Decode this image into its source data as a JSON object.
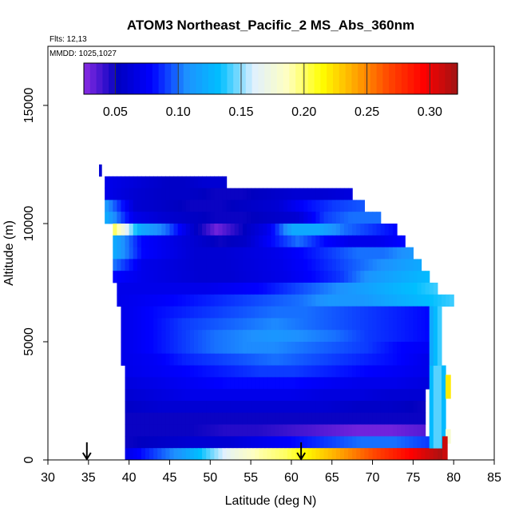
{
  "chart_data": {
    "type": "heatmap",
    "title": "ATOM3 Northeast_Pacific_2 MS_Abs_360nm",
    "annotations": [
      "Flts: 12,13",
      "MMDD: 1025,1027"
    ],
    "xlabel": "Latitude (deg N)",
    "ylabel": "Altitude (m)",
    "xlim": [
      30,
      85
    ],
    "ylim": [
      0,
      17500
    ],
    "x_ticks": [
      "30",
      "35",
      "40",
      "45",
      "50",
      "55",
      "60",
      "65",
      "70",
      "75",
      "80",
      "85"
    ],
    "y_ticks": [
      "0",
      "5000",
      "10000",
      "15000"
    ],
    "colorbar": {
      "range": [
        0.025,
        0.322
      ],
      "ticks": [
        "0.05",
        "0.10",
        "0.15",
        "0.20",
        "0.25",
        "0.30"
      ],
      "colors": [
        "#8a2be2",
        "#0000c0",
        "#0000ff",
        "#1e90ff",
        "#00bfff",
        "#e0f0ff",
        "#ffffc0",
        "#ffff00",
        "#ffa500",
        "#ff4500",
        "#ff0000",
        "#a01414"
      ]
    },
    "arrows": [
      {
        "lat": 34.8,
        "alt": 0
      },
      {
        "lat": 61.2,
        "alt": 0
      }
    ],
    "bands": [
      {
        "alt_min": 12000,
        "alt_max": 12500,
        "lat_min": 36.3,
        "lat_max": 36.6,
        "values": [
          0.06
        ]
      },
      {
        "alt_min": 11500,
        "alt_max": 12000,
        "lat_min": 37,
        "lat_max": 52,
        "values": [
          0.07,
          0.065,
          0.06,
          0.055,
          0.055,
          0.06,
          0.06
        ]
      },
      {
        "alt_min": 11000,
        "alt_max": 11500,
        "lat_min": 37,
        "lat_max": 67.5,
        "values": [
          0.07,
          0.06,
          0.055,
          0.055,
          0.05,
          0.05,
          0.055,
          0.06,
          0.06,
          0.065
        ]
      },
      {
        "alt_min": 10500,
        "alt_max": 11000,
        "lat_min": 37,
        "lat_max": 69,
        "values": [
          0.11,
          0.06,
          0.055,
          0.05,
          0.05,
          0.055,
          0.06,
          0.08,
          0.09,
          0.095
        ]
      },
      {
        "alt_min": 10000,
        "alt_max": 10500,
        "lat_min": 37,
        "lat_max": 71,
        "values": [
          0.12,
          0.07,
          0.06,
          0.055,
          0.05,
          0.05,
          0.055,
          0.06,
          0.09,
          0.1,
          0.1
        ]
      },
      {
        "alt_min": 9500,
        "alt_max": 10000,
        "lat_min": 38,
        "lat_max": 73,
        "values": [
          0.2,
          0.12,
          0.1,
          0.06,
          0.03,
          0.05,
          0.07,
          0.12,
          0.12,
          0.1,
          0.09,
          0.08
        ]
      },
      {
        "alt_min": 9000,
        "alt_max": 9500,
        "lat_min": 38,
        "lat_max": 74,
        "values": [
          0.12,
          0.08,
          0.07,
          0.06,
          0.05,
          0.055,
          0.08,
          0.1,
          0.08,
          0.07,
          0.07,
          0.08
        ]
      },
      {
        "alt_min": 8500,
        "alt_max": 9000,
        "lat_min": 38,
        "lat_max": 75,
        "values": [
          0.12,
          0.08,
          0.07,
          0.06,
          0.06,
          0.065,
          0.07,
          0.08,
          0.09,
          0.1,
          0.1,
          0.11
        ]
      },
      {
        "alt_min": 8000,
        "alt_max": 8500,
        "lat_min": 38,
        "lat_max": 76,
        "values": [
          0.1,
          0.07,
          0.065,
          0.06,
          0.06,
          0.065,
          0.07,
          0.08,
          0.09,
          0.1,
          0.11,
          0.12
        ]
      },
      {
        "alt_min": 7500,
        "alt_max": 8000,
        "lat_min": 38,
        "lat_max": 77,
        "values": [
          0.08,
          0.07,
          0.065,
          0.06,
          0.06,
          0.065,
          0.07,
          0.08,
          0.09,
          0.11,
          0.12,
          0.13
        ]
      },
      {
        "alt_min": 7000,
        "alt_max": 7500,
        "lat_min": 38.5,
        "lat_max": 78,
        "values": [
          0.07,
          0.07,
          0.07,
          0.07,
          0.075,
          0.08,
          0.09,
          0.1,
          0.11,
          0.12,
          0.13,
          0.14
        ]
      },
      {
        "alt_min": 6500,
        "alt_max": 7000,
        "lat_min": 38.5,
        "lat_max": 80,
        "values": [
          0.07,
          0.075,
          0.08,
          0.085,
          0.09,
          0.095,
          0.1,
          0.11,
          0.11,
          0.12,
          0.13,
          0.14
        ]
      },
      {
        "alt_min": 6000,
        "alt_max": 6500,
        "lat_min": 39,
        "lat_max": 77,
        "values": [
          0.07,
          0.08,
          0.085,
          0.09,
          0.095,
          0.1,
          0.1,
          0.095,
          0.09,
          0.085,
          0.08
        ]
      },
      {
        "alt_min": 5500,
        "alt_max": 6000,
        "lat_min": 39,
        "lat_max": 77,
        "values": [
          0.07,
          0.08,
          0.09,
          0.095,
          0.1,
          0.105,
          0.1,
          0.095,
          0.09,
          0.085,
          0.08
        ]
      },
      {
        "alt_min": 5000,
        "alt_max": 5500,
        "lat_min": 39,
        "lat_max": 77,
        "values": [
          0.07,
          0.08,
          0.09,
          0.1,
          0.105,
          0.11,
          0.105,
          0.1,
          0.09,
          0.085,
          0.08
        ]
      },
      {
        "alt_min": 4500,
        "alt_max": 5000,
        "lat_min": 39,
        "lat_max": 77,
        "values": [
          0.07,
          0.08,
          0.09,
          0.1,
          0.105,
          0.105,
          0.1,
          0.095,
          0.09,
          0.08,
          0.075
        ]
      },
      {
        "alt_min": 4000,
        "alt_max": 4500,
        "lat_min": 39,
        "lat_max": 77,
        "values": [
          0.07,
          0.075,
          0.085,
          0.09,
          0.095,
          0.1,
          0.095,
          0.09,
          0.085,
          0.08,
          0.07
        ]
      },
      {
        "alt_min": 3500,
        "alt_max": 4000,
        "lat_min": 39.5,
        "lat_max": 77,
        "values": [
          0.07,
          0.075,
          0.08,
          0.085,
          0.09,
          0.09,
          0.085,
          0.08,
          0.075,
          0.07
        ]
      },
      {
        "alt_min": 3000,
        "alt_max": 3500,
        "lat_min": 39.5,
        "lat_max": 77,
        "values": [
          0.065,
          0.07,
          0.075,
          0.08,
          0.08,
          0.08,
          0.075,
          0.07,
          0.07,
          0.065
        ]
      },
      {
        "alt_min": 2500,
        "alt_max": 3000,
        "lat_min": 39.5,
        "lat_max": 76.5,
        "values": [
          0.06,
          0.065,
          0.07,
          0.07,
          0.07,
          0.07,
          0.065,
          0.065,
          0.06,
          0.06
        ]
      },
      {
        "alt_min": 2000,
        "alt_max": 2500,
        "lat_min": 39.5,
        "lat_max": 76.5,
        "values": [
          0.055,
          0.06,
          0.06,
          0.06,
          0.06,
          0.06,
          0.06,
          0.055,
          0.055,
          0.05
        ]
      },
      {
        "alt_min": 1500,
        "alt_max": 2000,
        "lat_min": 39.5,
        "lat_max": 76.5,
        "values": [
          0.05,
          0.05,
          0.05,
          0.05,
          0.05,
          0.05,
          0.05,
          0.05,
          0.05,
          0.05
        ]
      },
      {
        "alt_min": 1000,
        "alt_max": 1500,
        "lat_min": 39.5,
        "lat_max": 76.5,
        "values": [
          0.05,
          0.05,
          0.05,
          0.045,
          0.045,
          0.04,
          0.035,
          0.03,
          0.03,
          0.035
        ]
      },
      {
        "alt_min": 500,
        "alt_max": 1000,
        "lat_min": 39.5,
        "lat_max": 77,
        "values": [
          0.05,
          0.055,
          0.06,
          0.06,
          0.07,
          0.08,
          0.09,
          0.1,
          0.1,
          0.09
        ]
      },
      {
        "alt_min": 0,
        "alt_max": 500,
        "lat_min": 39.5,
        "lat_max": 79,
        "values": [
          0.07,
          0.09,
          0.11,
          0.14,
          0.17,
          0.19,
          0.2,
          0.22,
          0.24,
          0.26,
          0.28,
          0.3,
          0.32
        ]
      },
      {
        "alt_min": 500,
        "alt_max": 4000,
        "lat_min": 77,
        "lat_max": 79,
        "values": [
          0.13,
          0.15,
          0.13
        ]
      },
      {
        "alt_min": 4000,
        "alt_max": 6500,
        "lat_min": 77,
        "lat_max": 78.5,
        "values": [
          0.12,
          0.14
        ]
      },
      {
        "alt_min": 2600,
        "alt_max": 3600,
        "lat_min": 79,
        "lat_max": 79.6,
        "values": [
          0.22
        ]
      },
      {
        "alt_min": 700,
        "alt_max": 1300,
        "lat_min": 79,
        "lat_max": 79.6,
        "values": [
          0.18
        ]
      },
      {
        "alt_min": 0,
        "alt_max": 1000,
        "lat_min": 78.6,
        "lat_max": 79.2,
        "values": [
          0.31
        ]
      }
    ]
  }
}
